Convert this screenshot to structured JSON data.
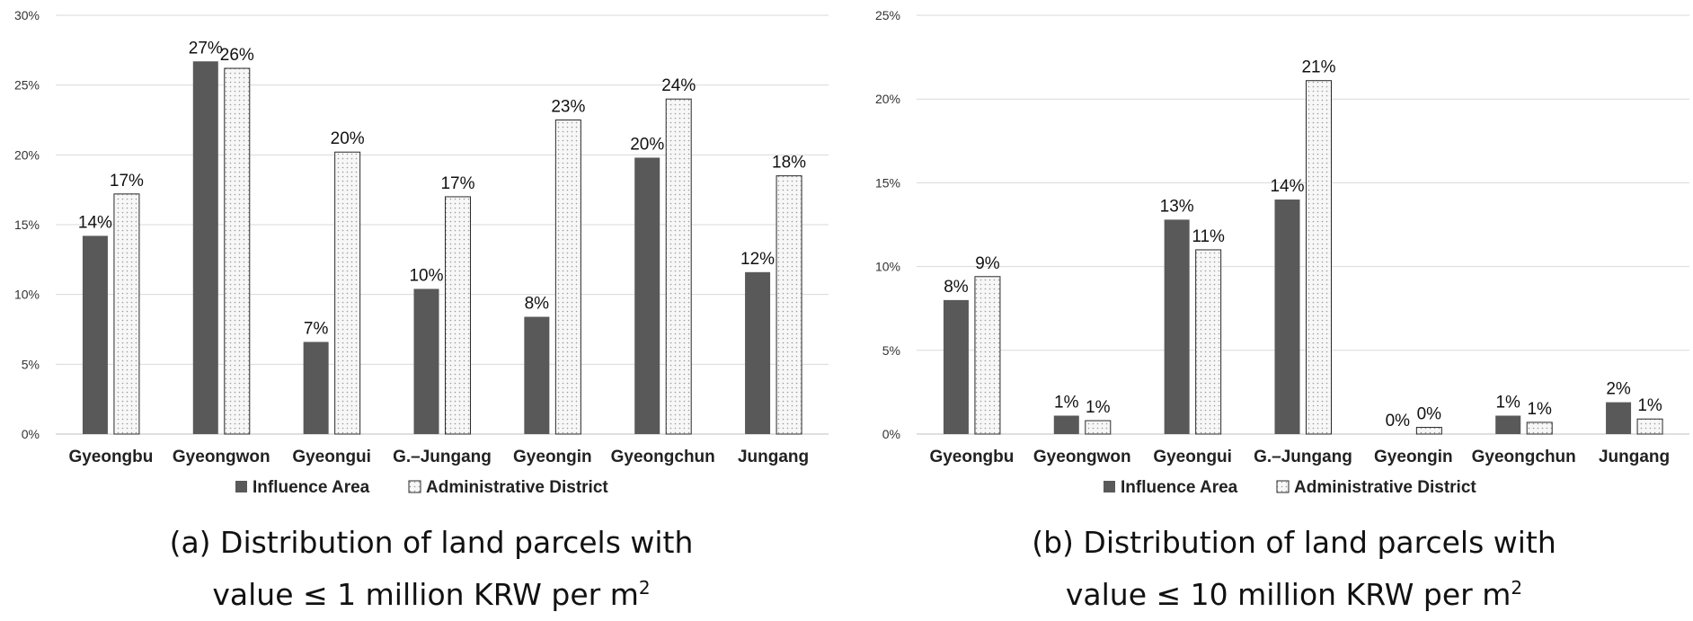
{
  "chart_data": [
    {
      "type": "bar",
      "categories": [
        "Gyeongbu",
        "Gyeongwon",
        "Gyeongui",
        "G.–Jungang",
        "Gyeongin",
        "Gyeongchun",
        "Jungang"
      ],
      "series": [
        {
          "name": "Influence Area",
          "values": [
            14.2,
            26.7,
            6.6,
            10.4,
            8.4,
            19.8,
            11.6
          ],
          "labels": [
            "14%",
            "27%",
            "7%",
            "10%",
            "8%",
            "20%",
            "12%"
          ]
        },
        {
          "name": "Administrative District",
          "values": [
            17.2,
            26.2,
            20.2,
            17.0,
            22.5,
            24.0,
            18.5
          ],
          "labels": [
            "17%",
            "26%",
            "20%",
            "17%",
            "23%",
            "24%",
            "18%"
          ]
        }
      ],
      "ylim": [
        0,
        30
      ],
      "yticks": [
        "0%",
        "5%",
        "10%",
        "15%",
        "20%",
        "25%",
        "30%"
      ],
      "grid": true,
      "legend": "bottom",
      "caption_line1": "(a) Distribution of land parcels with",
      "caption_line2": "value ≤ 1 million KRW per m",
      "caption_sup": "2"
    },
    {
      "type": "bar",
      "categories": [
        "Gyeongbu",
        "Gyeongwon",
        "Gyeongui",
        "G.–Jungang",
        "Gyeongin",
        "Gyeongchun",
        "Jungang"
      ],
      "series": [
        {
          "name": "Influence Area",
          "values": [
            8.0,
            1.1,
            12.8,
            14.0,
            0.0,
            1.1,
            1.9
          ],
          "labels": [
            "8%",
            "1%",
            "13%",
            "14%",
            "0%",
            "1%",
            "2%"
          ]
        },
        {
          "name": "Administrative District",
          "values": [
            9.4,
            0.8,
            11.0,
            21.1,
            0.4,
            0.7,
            0.9
          ],
          "labels": [
            "9%",
            "1%",
            "11%",
            "21%",
            "0%",
            "1%",
            "1%"
          ]
        }
      ],
      "ylim": [
        0,
        25
      ],
      "yticks": [
        "0%",
        "5%",
        "10%",
        "15%",
        "20%",
        "25%"
      ],
      "grid": true,
      "legend": "bottom",
      "caption_line1": "(b) Distribution of land parcels with",
      "caption_line2": "value ≤ 10 million KRW per m",
      "caption_sup": "2"
    }
  ],
  "colors": {
    "influence": "#595959",
    "admin_fill": "#f7f7f7",
    "admin_dots": "#9a9a9a",
    "grid": "#d9d9d9",
    "axis": "#bfbfbf"
  }
}
